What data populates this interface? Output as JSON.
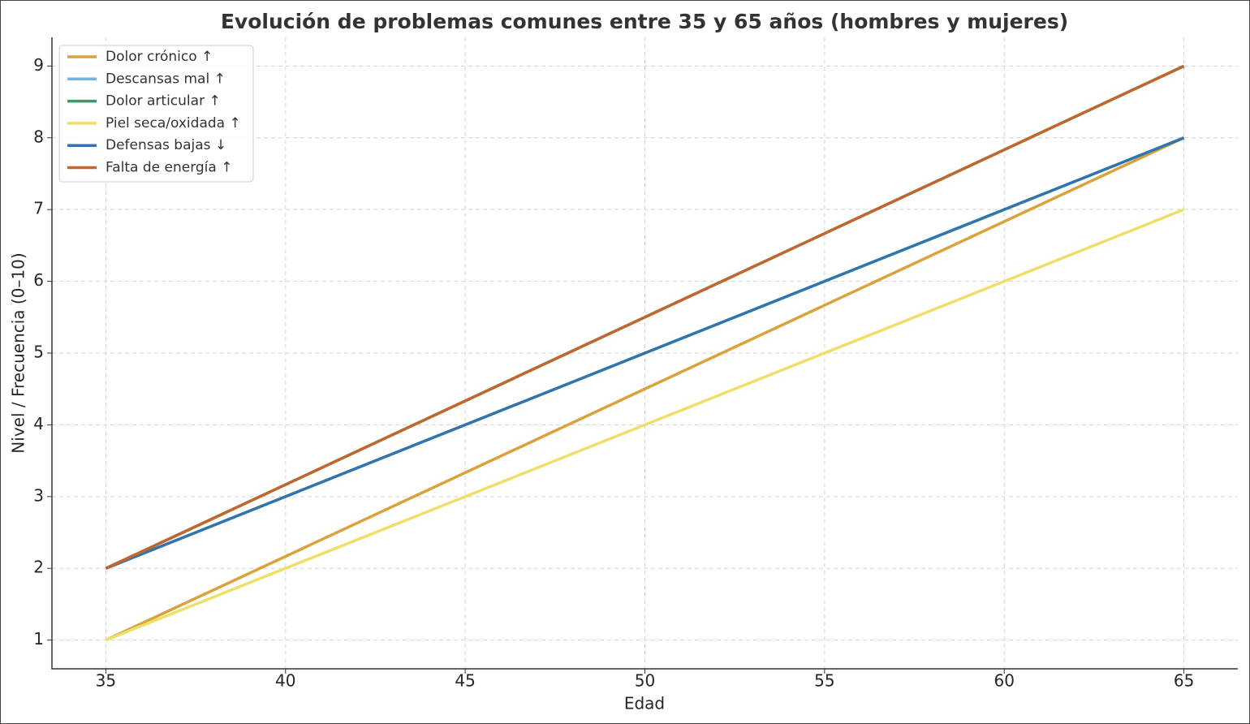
{
  "chart_data": {
    "type": "line",
    "title": "Evolución de problemas comunes entre 35 y 65 años (hombres y mujeres)",
    "x_label": "Edad",
    "y_label": "Nivel / Frecuencia (0–10)",
    "x": [
      35,
      65
    ],
    "series": [
      {
        "name": "Dolor crónico ↑",
        "color": "#dba13a",
        "values": [
          1,
          8
        ]
      },
      {
        "name": "Descansas mal ↑",
        "color": "#74b3e0",
        "values": [
          2,
          8
        ]
      },
      {
        "name": "Dolor articular ↑",
        "color": "#3a9a6a",
        "values": [
          2,
          9
        ]
      },
      {
        "name": "Piel seca/oxidada ↑",
        "color": "#ede067",
        "values": [
          1,
          7
        ]
      },
      {
        "name": "Defensas bajas ↓",
        "color": "#3274ad",
        "values": [
          2,
          8
        ]
      },
      {
        "name": "Falta de energía ↑",
        "color": "#c1662e",
        "values": [
          2,
          9
        ]
      }
    ],
    "xlim": [
      33.5,
      66.5
    ],
    "ylim": [
      0.6,
      9.4
    ],
    "xticks": [
      35,
      40,
      45,
      50,
      55,
      60,
      65
    ],
    "yticks": [
      1,
      2,
      3,
      4,
      5,
      6,
      7,
      8,
      9
    ],
    "grid": true,
    "legend": "upper-left"
  }
}
